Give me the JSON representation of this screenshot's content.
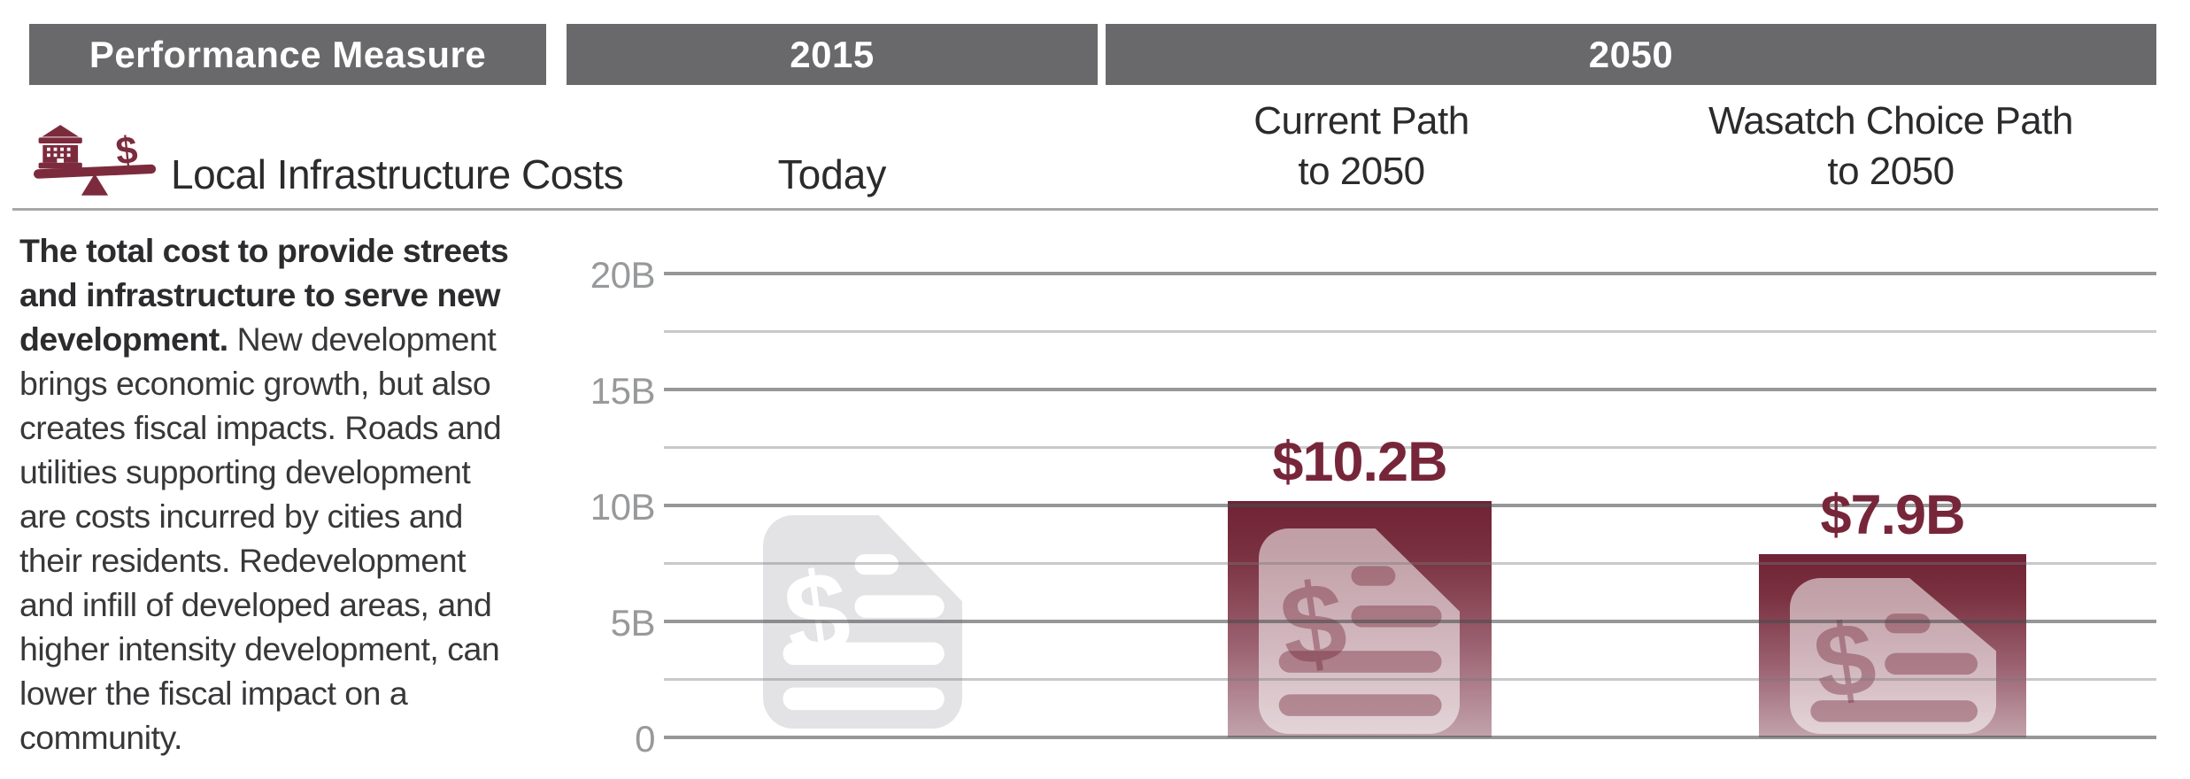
{
  "table_header": {
    "performance_measure": "Performance Measure",
    "year_2015": "2015",
    "year_2050": "2050"
  },
  "measure_row": {
    "icon": "balance-scale-bank-dollar-icon",
    "title": "Local Infrastructure Costs",
    "col_today": "Today",
    "col_current": "Current Path\nto 2050",
    "col_wasatch": "Wasatch Choice Path\nto 2050"
  },
  "description": {
    "bold": "The total cost to provide streets\nand infrastructure to serve new\ndevelopment.",
    "rest": " New development\nbrings economic growth, but also\ncreates fiscal impacts. Roads and\nutilities supporting development\nare costs incurred by cities and\ntheir residents. Redevelopment\nand infill of developed areas, and\nhigher intensity development, can\nlower the fiscal impact on a\ncommunity."
  },
  "chart_data": {
    "type": "bar",
    "title": "Local Infrastructure Costs",
    "categories": [
      "Today",
      "Current Path to 2050",
      "Wasatch Choice Path to 2050"
    ],
    "values": [
      null,
      10.2,
      7.9
    ],
    "value_labels": [
      "",
      "$10.2B",
      "$7.9B"
    ],
    "today_marker": "dollar-document-icon (no bar shown for Today)",
    "ylim": [
      0,
      20
    ],
    "yticks": [
      20,
      15,
      10,
      5,
      0
    ],
    "ytick_labels": [
      "20B",
      "15B",
      "10B",
      "5B",
      "0"
    ],
    "unit": "billions of dollars",
    "grid": "horizontal, major every 5B with minor lines every 2.5B",
    "legend": "none",
    "bar_color_top": "#702335",
    "bar_color_bottom": "#C2A3AC",
    "value_label_color": "#77263A",
    "axis_label_color": "#98999B"
  },
  "colors": {
    "header_bar_bg": "#69696B",
    "header_bar_text": "#FFFFFF",
    "accent_maroon": "#7C2B3D",
    "separator_gray": "#A6A8AA",
    "gray_icon_body": "#E3E3E5",
    "body_text": "#38383A"
  }
}
